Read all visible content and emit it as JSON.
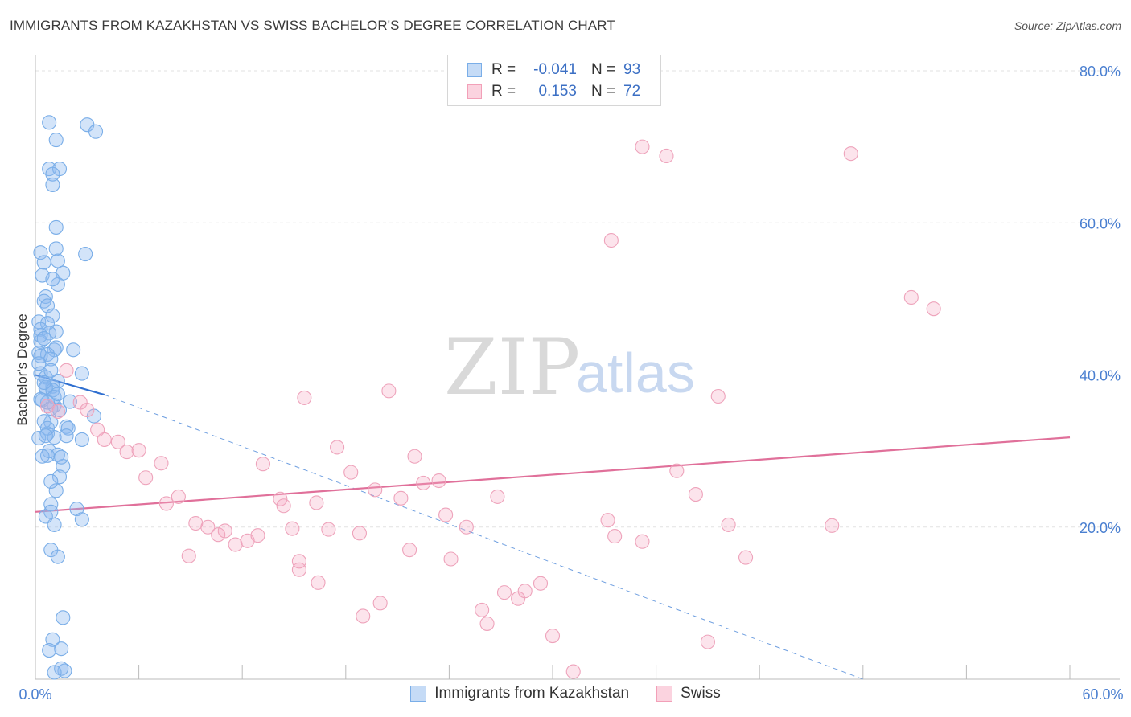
{
  "header": {
    "title": "IMMIGRANTS FROM KAZAKHSTAN VS SWISS BACHELOR'S DEGREE CORRELATION CHART",
    "source": "Source: ZipAtlas.com"
  },
  "watermark": {
    "zip": "ZIP",
    "atlas": "atlas"
  },
  "legend": {
    "rows": [
      {
        "r_label": "R =",
        "r_value": "-0.041",
        "n_label": "N =",
        "n_value": "93",
        "color": "#7aaee8"
      },
      {
        "r_label": "R =",
        "r_value": "0.153",
        "n_label": "N =",
        "n_value": "72",
        "color": "#f2a0b8"
      }
    ]
  },
  "colors": {
    "blue": "#7aaee8",
    "blue_line": "#2f6fd0",
    "pink": "#f2a0b8",
    "pink_line": "#e0709a",
    "tick_text": "#4a7fd0"
  },
  "chart_data": {
    "type": "scatter",
    "title": "IMMIGRANTS FROM KAZAKHSTAN VS SWISS BACHELOR'S DEGREE CORRELATION CHART",
    "xlabel": "",
    "ylabel": "Bachelor's Degree",
    "xlim": [
      0,
      60
    ],
    "ylim": [
      0,
      80
    ],
    "x_tick_labels": [
      "0.0%",
      "60.0%"
    ],
    "y_ticks": [
      20,
      40,
      60,
      80
    ],
    "y_tick_labels": [
      "20.0%",
      "40.0%",
      "60.0%",
      "80.0%"
    ],
    "grid": true,
    "legend_placement": "top-center",
    "series": [
      {
        "name": "Immigrants from Kazakhstan",
        "color": "#7aaee8",
        "trend": {
          "x": [
            0,
            4
          ],
          "y": [
            40,
            37.4
          ],
          "dashed_extension_to": [
            48,
            0
          ]
        },
        "x": [
          0.8,
          3.0,
          3.5,
          1.2,
          0.8,
          1.4,
          1.0,
          1.0,
          1.2,
          0.3,
          1.2,
          0.5,
          1.3,
          2.9,
          1.6,
          0.4,
          1.3,
          1.0,
          0.6,
          0.5,
          0.7,
          1.0,
          0.2,
          0.7,
          0.3,
          1.2,
          0.8,
          0.3,
          1.1,
          1.2,
          2.2,
          0.2,
          0.7,
          0.3,
          0.9,
          2.7,
          0.3,
          0.6,
          1.3,
          1.0,
          0.6,
          2.0,
          1.1,
          0.9,
          3.4,
          0.9,
          1.8,
          1.9,
          0.7,
          1.1,
          2.7,
          0.8,
          1.3,
          0.7,
          1.6,
          1.4,
          1.2,
          0.9,
          2.4,
          0.9,
          1.1,
          2.7,
          0.9,
          1.3,
          1.6,
          1.0,
          1.5,
          0.3,
          0.5,
          0.6,
          1.0,
          1.1,
          0.4,
          0.7,
          1.4,
          0.5,
          1.8,
          0.2,
          1.5,
          0.4,
          0.9,
          0.6,
          1.7,
          0.8,
          1.5,
          1.1,
          0.2,
          0.9,
          0.5,
          1.3,
          0.3,
          0.7,
          0.6
        ],
        "y": [
          73.2,
          72.9,
          72.0,
          70.9,
          67.1,
          67.1,
          66.4,
          65.0,
          59.4,
          56.1,
          56.6,
          54.8,
          55.0,
          55.9,
          53.4,
          53.1,
          51.9,
          52.6,
          50.3,
          49.7,
          49.1,
          47.8,
          47.0,
          46.8,
          46.0,
          45.7,
          45.5,
          44.4,
          43.3,
          43.6,
          43.3,
          42.9,
          42.7,
          42.5,
          42.1,
          40.2,
          40.2,
          39.7,
          39.2,
          38.5,
          38.2,
          36.5,
          36.0,
          35.6,
          34.6,
          33.8,
          33.2,
          33.0,
          32.3,
          31.8,
          31.5,
          30.0,
          29.5,
          29.4,
          28.0,
          26.6,
          24.8,
          23.0,
          22.4,
          22.0,
          20.3,
          21.0,
          17.0,
          16.1,
          8.1,
          5.2,
          4.0,
          45.2,
          44.8,
          38.4,
          38.0,
          37.1,
          36.7,
          36.4,
          35.4,
          33.9,
          32.0,
          31.7,
          29.2,
          29.3,
          26.0,
          21.4,
          1.1,
          3.8,
          1.4,
          0.9,
          41.5,
          40.6,
          39.0,
          37.5,
          36.8,
          33.0,
          32.0
        ]
      },
      {
        "name": "Swiss",
        "color": "#f2a0b8",
        "trend": {
          "x": [
            0,
            60
          ],
          "y": [
            22.0,
            31.8
          ]
        },
        "x": [
          35.2,
          36.6,
          47.3,
          33.4,
          50.8,
          52.1,
          15.6,
          20.5,
          39.6,
          0.7,
          1.3,
          1.8,
          2.6,
          3.0,
          3.6,
          4.0,
          4.8,
          5.3,
          6.0,
          6.4,
          7.3,
          7.6,
          8.3,
          8.9,
          9.3,
          10.0,
          10.6,
          11.0,
          11.6,
          12.3,
          12.9,
          13.2,
          14.2,
          14.4,
          14.9,
          15.3,
          16.3,
          17.0,
          17.5,
          18.3,
          19.0,
          19.7,
          20.0,
          21.2,
          22.0,
          22.5,
          23.4,
          23.8,
          24.1,
          25.0,
          26.2,
          26.8,
          27.2,
          28.0,
          28.4,
          29.3,
          30.0,
          31.2,
          33.2,
          33.6,
          35.2,
          37.2,
          38.3,
          39.0,
          40.2,
          41.2,
          46.2,
          15.3,
          16.4,
          21.7,
          25.9,
          18.8
        ],
        "y": [
          70.0,
          68.8,
          69.1,
          57.7,
          50.2,
          48.7,
          37.0,
          37.9,
          37.2,
          35.9,
          35.2,
          40.6,
          36.4,
          35.4,
          32.8,
          31.5,
          31.2,
          29.9,
          30.1,
          26.5,
          28.4,
          23.1,
          24.0,
          16.2,
          20.5,
          20.0,
          19.0,
          19.5,
          17.7,
          18.2,
          18.9,
          28.3,
          23.7,
          22.8,
          19.8,
          14.4,
          23.2,
          19.7,
          30.5,
          27.2,
          8.3,
          24.9,
          10.0,
          23.8,
          29.3,
          25.8,
          26.1,
          21.6,
          15.8,
          20.0,
          7.3,
          24.0,
          11.4,
          10.6,
          11.6,
          12.6,
          5.7,
          1.0,
          20.9,
          18.8,
          18.1,
          27.4,
          24.3,
          4.9,
          20.3,
          16.0,
          20.2,
          15.5,
          12.7,
          17.0,
          9.1,
          19.2
        ]
      }
    ]
  },
  "bottom_legend": {
    "items": [
      {
        "label": "Immigrants from Kazakhstan",
        "color": "#7aaee8"
      },
      {
        "label": "Swiss",
        "color": "#f2a0b8"
      }
    ]
  }
}
